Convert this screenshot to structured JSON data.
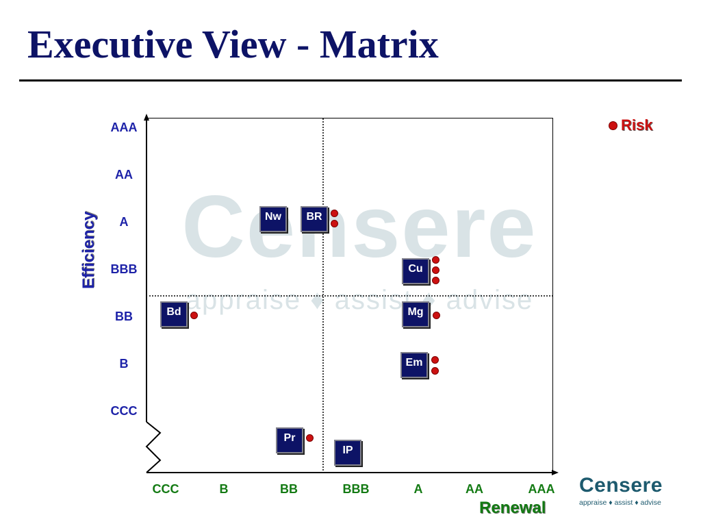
{
  "title": "Executive View - Matrix",
  "watermark": {
    "name": "Censere",
    "tagline": "appraise ♦ assist ♦ advise"
  },
  "axes": {
    "y_label": "Efficiency",
    "x_label": "Renewal",
    "y_ticks": [
      "AAA",
      "AA",
      "A",
      "BBB",
      "BB",
      "B",
      "CCC"
    ],
    "x_ticks": [
      "CCC",
      "B",
      "BB",
      "BBB",
      "A",
      "AA",
      "AAA"
    ],
    "y_axis_broken_below": "CCC",
    "quadrant_divider_x": "between BB and BBB",
    "quadrant_divider_y": "between BBB and BB"
  },
  "legend": {
    "label": "Risk",
    "color": "#cc1111"
  },
  "items": [
    {
      "code": "Nw",
      "renewal": "BB",
      "efficiency": "A",
      "risk": 0
    },
    {
      "code": "BR",
      "renewal": "BB",
      "efficiency": "A",
      "risk": 2
    },
    {
      "code": "Cu",
      "renewal": "A",
      "efficiency": "BBB",
      "risk": 3
    },
    {
      "code": "Bd",
      "renewal": "CCC",
      "efficiency": "BB",
      "risk": 1
    },
    {
      "code": "Mg",
      "renewal": "A",
      "efficiency": "BB",
      "risk": 1
    },
    {
      "code": "Em",
      "renewal": "A",
      "efficiency": "B",
      "risk": 2
    },
    {
      "code": "Pr",
      "renewal": "BB",
      "efficiency": "below CCC",
      "risk": 1
    },
    {
      "code": "IP",
      "renewal": "BBB",
      "efficiency": "below CCC",
      "risk": 0
    }
  ],
  "logo": {
    "name": "Censere",
    "tagline": "appraise ♦ assist ♦ advise"
  },
  "colors": {
    "title": "#0d1366",
    "y_axis_text": "#1d22a8",
    "x_axis_text": "#137a13",
    "box_fill": "#0d1366",
    "risk": "#cc1111",
    "logo": "#1d5a6e"
  }
}
